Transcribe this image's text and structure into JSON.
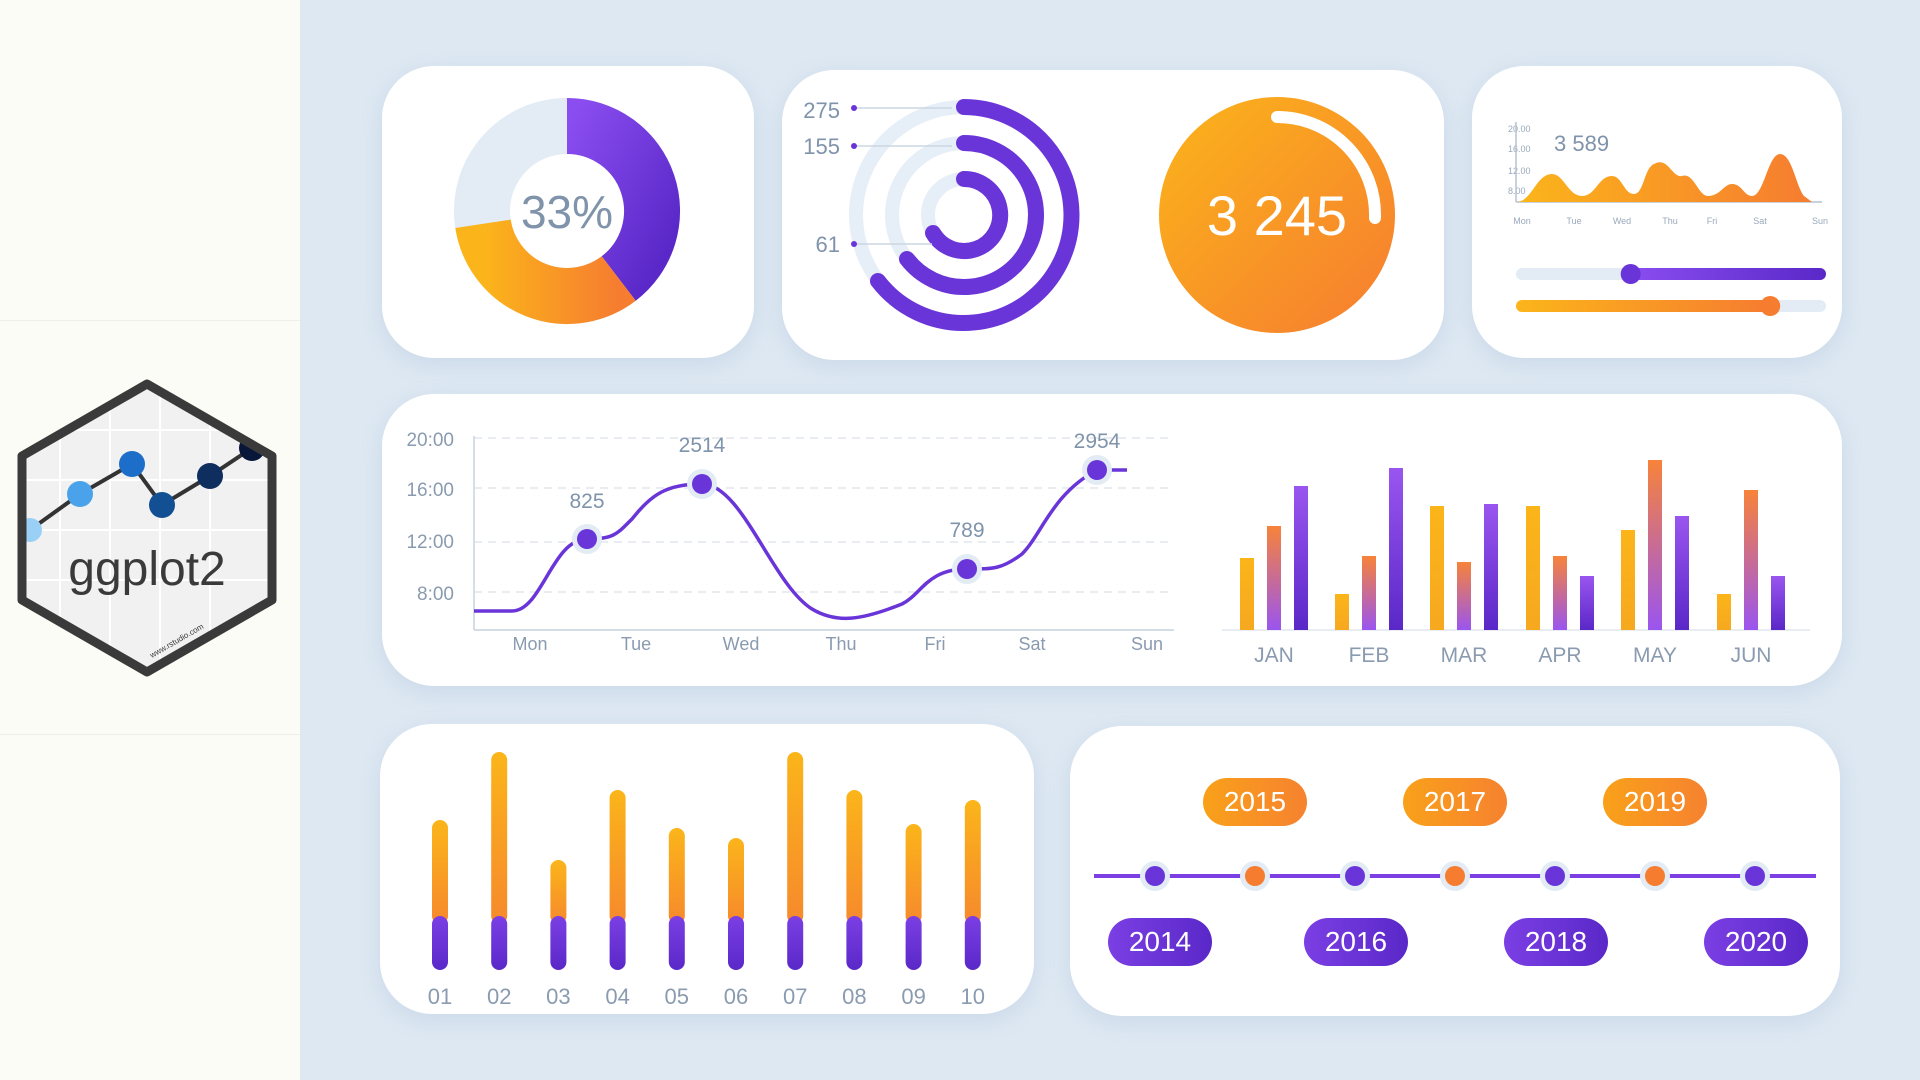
{
  "logo": {
    "text": "ggplot2",
    "site": "www.rstudio.com"
  },
  "donut": {
    "value_label": "33%",
    "percent": 33
  },
  "radial": {
    "labels": [
      "275",
      "155",
      "61"
    ],
    "circle_value": "3 245"
  },
  "mini_area": {
    "value_label": "3 589",
    "y_ticks": [
      "20.00",
      "16.00",
      "12.00",
      "8.00"
    ],
    "x_ticks": [
      "Mon",
      "Tue",
      "Wed",
      "Thu",
      "Fri",
      "Sat",
      "Sun"
    ],
    "slider_purple_level": 0.37,
    "slider_orange_level": 0.82
  },
  "chart_data": [
    {
      "type": "line",
      "y_ticks": [
        "20:00",
        "16:00",
        "12:00",
        "8:00"
      ],
      "x_ticks": [
        "Mon",
        "Tue",
        "Wed",
        "Thu",
        "Fri",
        "Sat",
        "Sun"
      ],
      "annotations": [
        "825",
        "2514",
        "789",
        "2954"
      ]
    },
    {
      "type": "bar",
      "categories": [
        "JAN",
        "FEB",
        "MAR",
        "APR",
        "MAY",
        "JUN"
      ],
      "series": [
        {
          "values": [
            72,
            36,
            124,
            124,
            100,
            36
          ]
        },
        {
          "values": [
            104,
            74,
            68,
            74,
            170,
            140
          ]
        },
        {
          "values": [
            144,
            162,
            126,
            54,
            114,
            54
          ]
        }
      ]
    },
    {
      "type": "bar",
      "categories": [
        "01",
        "02",
        "03",
        "04",
        "05",
        "06",
        "07",
        "08",
        "09",
        "10"
      ],
      "values": [
        150,
        218,
        110,
        180,
        142,
        132,
        218,
        180,
        146,
        170
      ]
    }
  ],
  "timeline": {
    "top_years": [
      "2015",
      "2017",
      "2019"
    ],
    "bottom_years": [
      "2014",
      "2016",
      "2018",
      "2020"
    ]
  },
  "colors": {
    "purple": "#6a35d8",
    "orange": "#f7941d",
    "yellow": "#fbb51a",
    "text_gray": "#8a9bb0"
  }
}
